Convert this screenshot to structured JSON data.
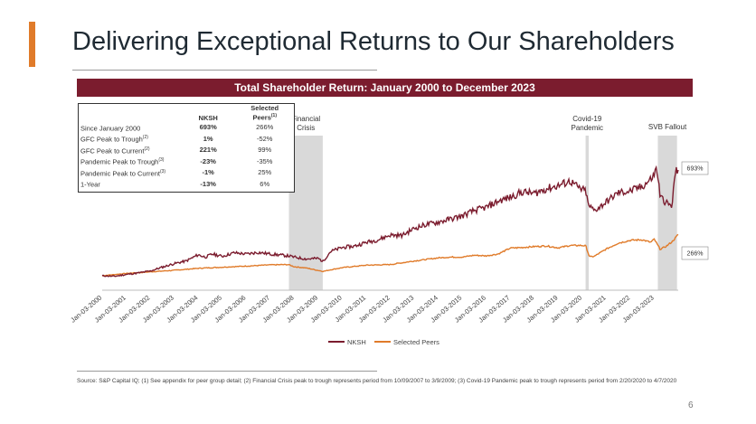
{
  "page": {
    "title": "Delivering Exceptional Returns to Our Shareholders",
    "page_number": "6",
    "source_text": "Source: S&P Capital IQ; (1) See appendix for peer group detail; (2) Financial Crisis peak to trough represents period from 10/09/2007 to 3/9/2009; (3) Covid-19 Pandemic peak to trough represents period from 2/20/2020 to 4/7/2020"
  },
  "colors": {
    "accent": "#e07b2a",
    "banner": "#7b1c2e",
    "nksh": "#7b1c2e",
    "peers": "#e07b2a",
    "shade": "#d9d9d9"
  },
  "stats_table": {
    "headers": {
      "metric": "",
      "nksh": "NKSH",
      "peers_line1": "Selected",
      "peers_line2": "Peers",
      "peers_note": "(1)"
    },
    "rows": [
      {
        "label": "Since January 2000",
        "note": "",
        "nksh": "693%",
        "peers": "266%"
      },
      {
        "label": "GFC Peak to Trough",
        "note": "(2)",
        "nksh": "1%",
        "peers": "-52%"
      },
      {
        "label": "GFC Peak to Current",
        "note": "(2)",
        "nksh": "221%",
        "peers": "99%"
      },
      {
        "label": "Pandemic Peak to Trough",
        "note": "(3)",
        "nksh": "-23%",
        "peers": "-35%"
      },
      {
        "label": "Pandemic Peak to Current",
        "note": "(3)",
        "nksh": "-1%",
        "peers": "25%"
      },
      {
        "label": "1-Year",
        "note": "",
        "nksh": "-13%",
        "peers": "6%"
      }
    ]
  },
  "chart_data": {
    "type": "line",
    "title": "Total Shareholder Return: January 2000 to December 2023",
    "x_ticks": [
      "Jan-03-2000",
      "Jan-03-2001",
      "Jan-03-2002",
      "Jan-03-2003",
      "Jan-03-2004",
      "Jan-03-2005",
      "Jan-03-2006",
      "Jan-03-2007",
      "Jan-03-2008",
      "Jan-03-2009",
      "Jan-03-2010",
      "Jan-03-2011",
      "Jan-03-2012",
      "Jan-03-2013",
      "Jan-03-2014",
      "Jan-03-2015",
      "Jan-03-2016",
      "Jan-03-2017",
      "Jan-03-2018",
      "Jan-03-2019",
      "Jan-03-2020",
      "Jan-03-2021",
      "Jan-03-2022",
      "Jan-03-2023"
    ],
    "x_range": [
      2000.0,
      2024.0
    ],
    "y_range_pct": [
      -20,
      780
    ],
    "series": [
      {
        "name": "NKSH",
        "end_label": "693%",
        "points": [
          [
            2000.0,
            0
          ],
          [
            2000.5,
            -4
          ],
          [
            2001.0,
            8
          ],
          [
            2001.5,
            18
          ],
          [
            2002.0,
            30
          ],
          [
            2002.5,
            55
          ],
          [
            2003.0,
            78
          ],
          [
            2003.5,
            95
          ],
          [
            2004.0,
            135
          ],
          [
            2004.3,
            120
          ],
          [
            2004.6,
            140
          ],
          [
            2005.0,
            125
          ],
          [
            2005.5,
            148
          ],
          [
            2006.0,
            140
          ],
          [
            2006.5,
            150
          ],
          [
            2007.0,
            140
          ],
          [
            2007.5,
            132
          ],
          [
            2007.75,
            128
          ],
          [
            2008.0,
            120
          ],
          [
            2008.5,
            108
          ],
          [
            2009.0,
            112
          ],
          [
            2009.2,
            92
          ],
          [
            2009.5,
            155
          ],
          [
            2010.0,
            182
          ],
          [
            2010.5,
            190
          ],
          [
            2011.0,
            215
          ],
          [
            2011.5,
            232
          ],
          [
            2012.0,
            262
          ],
          [
            2012.5,
            260
          ],
          [
            2013.0,
            305
          ],
          [
            2013.5,
            330
          ],
          [
            2014.0,
            345
          ],
          [
            2014.5,
            365
          ],
          [
            2015.0,
            385
          ],
          [
            2015.5,
            420
          ],
          [
            2016.0,
            440
          ],
          [
            2016.5,
            480
          ],
          [
            2017.0,
            505
          ],
          [
            2017.5,
            540
          ],
          [
            2018.0,
            530
          ],
          [
            2018.5,
            560
          ],
          [
            2019.0,
            580
          ],
          [
            2019.5,
            610
          ],
          [
            2019.9,
            560
          ],
          [
            2020.15,
            545
          ],
          [
            2020.25,
            455
          ],
          [
            2020.5,
            420
          ],
          [
            2020.75,
            445
          ],
          [
            2021.0,
            475
          ],
          [
            2021.5,
            535
          ],
          [
            2022.0,
            545
          ],
          [
            2022.5,
            575
          ],
          [
            2022.85,
            620
          ],
          [
            2023.0,
            650
          ],
          [
            2023.1,
            700
          ],
          [
            2023.25,
            510
          ],
          [
            2023.5,
            470
          ],
          [
            2023.75,
            445
          ],
          [
            2023.85,
            650
          ],
          [
            2024.0,
            693
          ]
        ]
      },
      {
        "name": "Selected Peers",
        "end_label": "266%",
        "points": [
          [
            2000.0,
            0
          ],
          [
            2001.0,
            15
          ],
          [
            2002.0,
            25
          ],
          [
            2003.0,
            35
          ],
          [
            2004.0,
            48
          ],
          [
            2005.0,
            55
          ],
          [
            2006.0,
            62
          ],
          [
            2007.0,
            70
          ],
          [
            2007.75,
            72
          ],
          [
            2008.0,
            58
          ],
          [
            2008.5,
            50
          ],
          [
            2009.2,
            28
          ],
          [
            2009.5,
            38
          ],
          [
            2010.0,
            52
          ],
          [
            2011.0,
            68
          ],
          [
            2012.0,
            72
          ],
          [
            2013.0,
            95
          ],
          [
            2014.0,
            115
          ],
          [
            2014.5,
            120
          ],
          [
            2015.0,
            120
          ],
          [
            2015.5,
            132
          ],
          [
            2016.0,
            128
          ],
          [
            2016.5,
            140
          ],
          [
            2017.0,
            178
          ],
          [
            2017.5,
            182
          ],
          [
            2018.0,
            188
          ],
          [
            2018.5,
            192
          ],
          [
            2019.0,
            180
          ],
          [
            2019.5,
            195
          ],
          [
            2020.0,
            195
          ],
          [
            2020.15,
            192
          ],
          [
            2020.3,
            122
          ],
          [
            2020.5,
            125
          ],
          [
            2021.0,
            172
          ],
          [
            2021.5,
            210
          ],
          [
            2022.0,
            228
          ],
          [
            2022.5,
            232
          ],
          [
            2022.85,
            215
          ],
          [
            2023.0,
            235
          ],
          [
            2023.25,
            170
          ],
          [
            2023.5,
            190
          ],
          [
            2023.75,
            220
          ],
          [
            2024.0,
            266
          ]
        ]
      }
    ],
    "shaded_periods": [
      {
        "label_line1": "Financial",
        "label_line2": "Crisis",
        "start": 2007.78,
        "end": 2009.19
      },
      {
        "label_line1": "Covid-19",
        "label_line2": "Pandemic",
        "start": 2020.14,
        "end": 2020.27
      },
      {
        "label_line1": "SVB Fallout",
        "label_line2": "",
        "start": 2023.15,
        "end": 2023.95
      }
    ],
    "legend": [
      "NKSH",
      "Selected Peers"
    ],
    "legend_position": "bottom-center"
  }
}
